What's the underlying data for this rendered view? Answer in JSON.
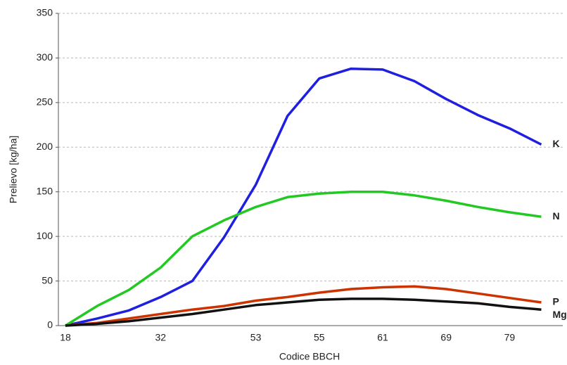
{
  "chart_data": {
    "type": "line",
    "x_label": "Codice BBCH",
    "y_label": "Prelievo [kg/ha]",
    "categories": [
      "18",
      null,
      null,
      "32",
      null,
      null,
      "53",
      null,
      "55",
      null,
      "61",
      null,
      "69",
      null,
      "79",
      null
    ],
    "series": [
      {
        "name": "K",
        "color": "#1f1fe0",
        "values": [
          0,
          8,
          17,
          32,
          50,
          99,
          158,
          235,
          277,
          288,
          287,
          274,
          254,
          236,
          221,
          203
        ]
      },
      {
        "name": "N",
        "color": "#22c922",
        "values": [
          0,
          22,
          40,
          65,
          100,
          118,
          133,
          144,
          148,
          150,
          150,
          146,
          140,
          133,
          127,
          122
        ]
      },
      {
        "name": "P",
        "color": "#cc3300",
        "values": [
          0,
          3,
          8,
          13,
          18,
          22,
          28,
          32,
          37,
          41,
          43,
          44,
          41,
          36,
          31,
          26
        ]
      },
      {
        "name": "Mg",
        "color": "#111111",
        "values": [
          0,
          2,
          5,
          9,
          13,
          18,
          23,
          26,
          29,
          30,
          30,
          29,
          27,
          25,
          21,
          18
        ]
      }
    ],
    "ylim": [
      0,
      350
    ],
    "yticks": [
      0,
      50,
      100,
      150,
      200,
      250,
      300,
      350
    ],
    "grid": true
  }
}
